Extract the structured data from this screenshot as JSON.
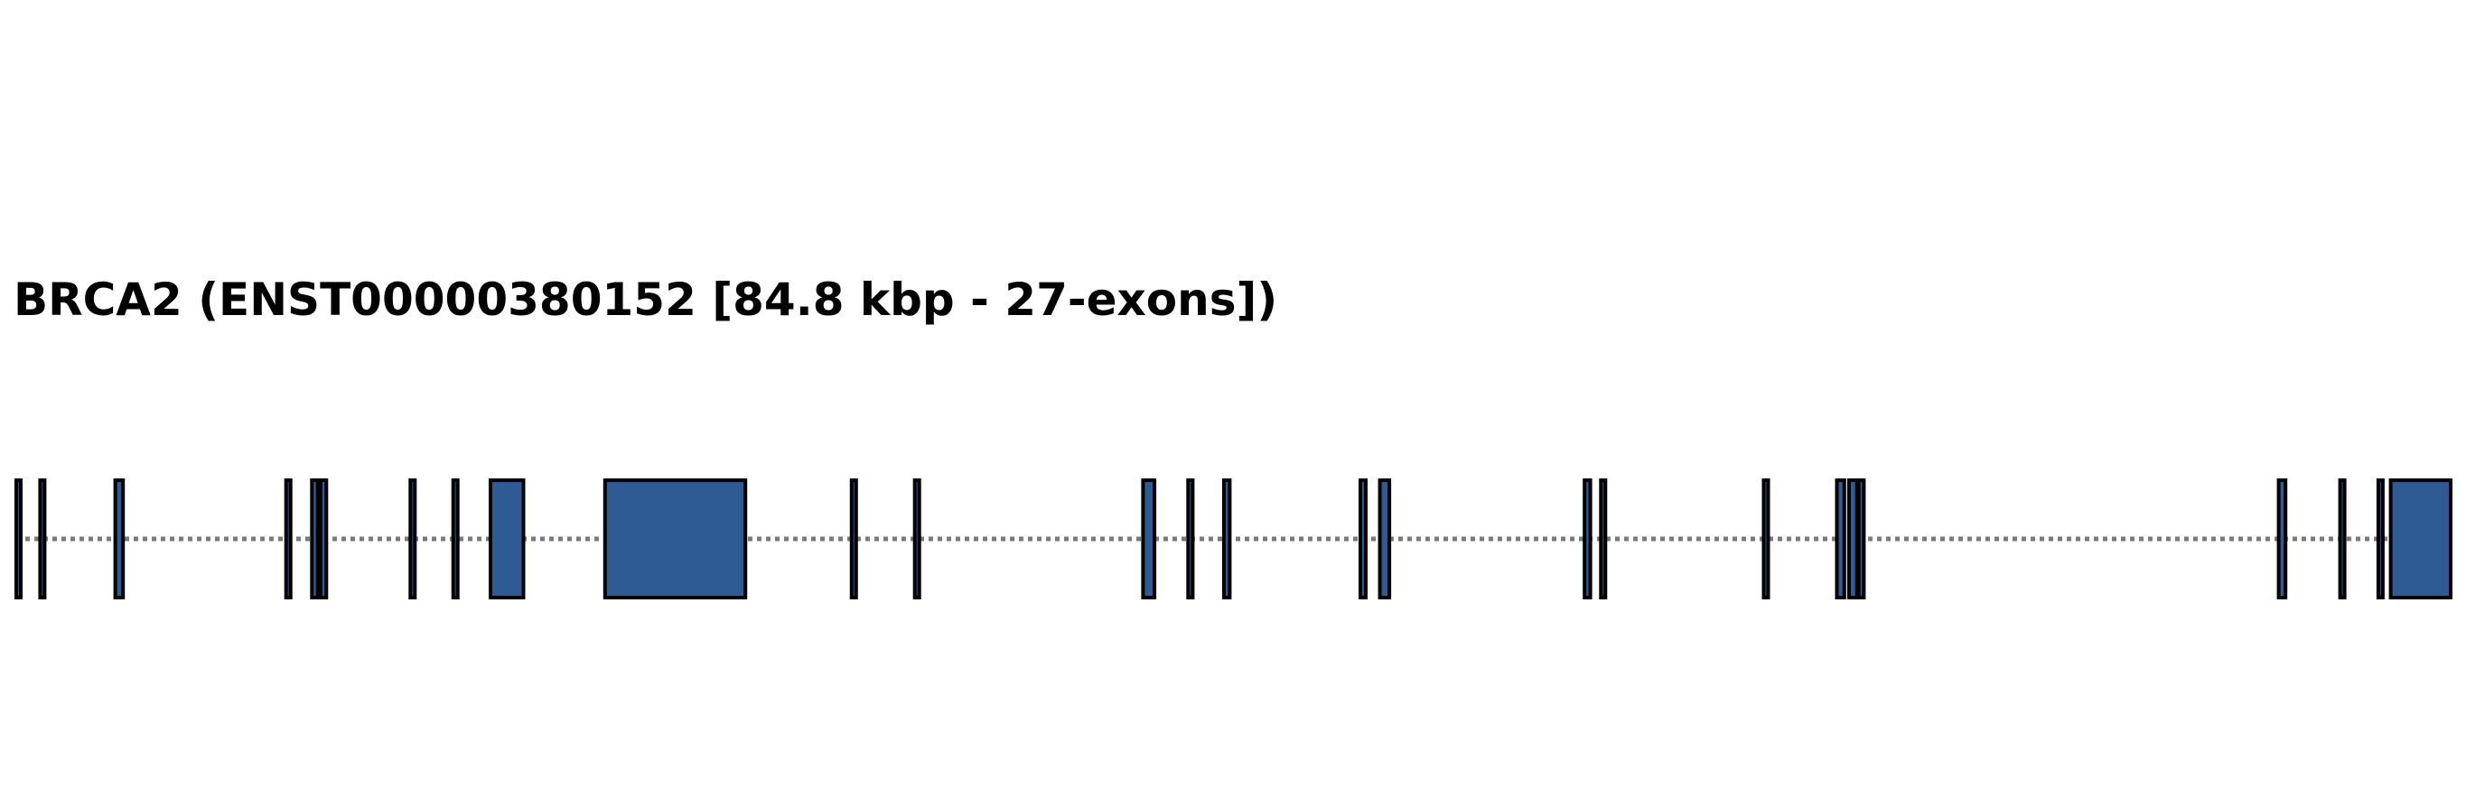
{
  "title": "BRCA2 (ENST00000380152 [84.8 kbp - 27-exons])",
  "colors": {
    "exon_fill": "#2f5b94",
    "exon_stroke": "#000000",
    "intron_line": "#7a7a7a",
    "background": "#ffffff",
    "title": "#000000"
  },
  "chart_data": {
    "type": "gene-structure",
    "gene": "BRCA2",
    "transcript": "ENST00000380152",
    "length_kbp": 84.8,
    "exon_count": 27,
    "intron_style": "dotted",
    "exons_kbp": [
      {
        "start": 0.0,
        "end": 0.1
      },
      {
        "start": 0.83,
        "end": 0.98
      },
      {
        "start": 3.45,
        "end": 3.72
      },
      {
        "start": 9.4,
        "end": 9.52
      },
      {
        "start": 10.3,
        "end": 10.5
      },
      {
        "start": 10.6,
        "end": 10.8
      },
      {
        "start": 13.73,
        "end": 13.83
      },
      {
        "start": 15.22,
        "end": 15.37
      },
      {
        "start": 16.52,
        "end": 17.67
      },
      {
        "start": 20.51,
        "end": 25.4
      },
      {
        "start": 29.1,
        "end": 29.24
      },
      {
        "start": 31.3,
        "end": 31.42
      },
      {
        "start": 39.25,
        "end": 39.65
      },
      {
        "start": 40.82,
        "end": 40.98
      },
      {
        "start": 42.07,
        "end": 42.27
      },
      {
        "start": 46.82,
        "end": 47.01
      },
      {
        "start": 47.5,
        "end": 47.83
      },
      {
        "start": 54.63,
        "end": 54.83
      },
      {
        "start": 55.2,
        "end": 55.34
      },
      {
        "start": 60.87,
        "end": 61.01
      },
      {
        "start": 63.42,
        "end": 63.68
      },
      {
        "start": 63.84,
        "end": 64.12
      },
      {
        "start": 64.18,
        "end": 64.36
      },
      {
        "start": 78.81,
        "end": 79.05
      },
      {
        "start": 80.95,
        "end": 81.08
      },
      {
        "start": 82.28,
        "end": 82.42
      },
      {
        "start": 82.71,
        "end": 84.8
      }
    ]
  }
}
